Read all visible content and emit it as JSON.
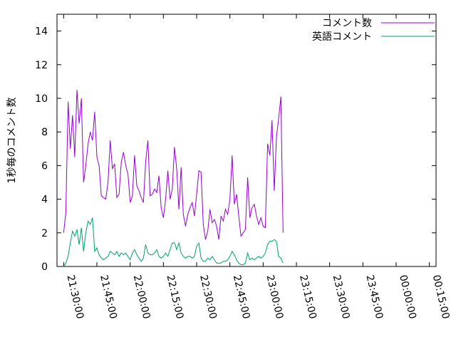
{
  "chart_data": {
    "type": "line",
    "title": "",
    "xlabel": "",
    "ylabel": "1秒毎のコメント数",
    "ylim": [
      0,
      15
    ],
    "yticks": [
      0,
      2,
      4,
      6,
      8,
      10,
      12,
      14
    ],
    "xticks": [
      {
        "value": 0,
        "label": "21:30:00"
      },
      {
        "value": 15,
        "label": "21:45:00"
      },
      {
        "value": 30,
        "label": "22:00:00"
      },
      {
        "value": 45,
        "label": "22:15:00"
      },
      {
        "value": 60,
        "label": "22:30:00"
      },
      {
        "value": 75,
        "label": "22:45:00"
      },
      {
        "value": 90,
        "label": "23:00:00"
      },
      {
        "value": 105,
        "label": "23:15:00"
      },
      {
        "value": 120,
        "label": "23:30:00"
      },
      {
        "value": 135,
        "label": "23:45:00"
      },
      {
        "value": 150,
        "label": "00:00:00"
      },
      {
        "value": 165,
        "label": "00:15:00"
      }
    ],
    "xlim": [
      -3,
      168
    ],
    "grid": false,
    "legend_position": "top-right",
    "series": [
      {
        "name": "コメント数",
        "color": "#9400d3",
        "points": [
          [
            0,
            2.0
          ],
          [
            1,
            3.2
          ],
          [
            2,
            9.8
          ],
          [
            3,
            7.0
          ],
          [
            4,
            9.0
          ],
          [
            5,
            6.5
          ],
          [
            6,
            10.5
          ],
          [
            7,
            8.5
          ],
          [
            8,
            10.0
          ],
          [
            9,
            5.0
          ],
          [
            10,
            6.0
          ],
          [
            11,
            7.3
          ],
          [
            12,
            8.0
          ],
          [
            13,
            7.5
          ],
          [
            14,
            9.2
          ],
          [
            15,
            6.5
          ],
          [
            16,
            6.0
          ],
          [
            17,
            4.2
          ],
          [
            18,
            4.1
          ],
          [
            19,
            4.0
          ],
          [
            20,
            5.0
          ],
          [
            21,
            7.5
          ],
          [
            22,
            5.8
          ],
          [
            23,
            6.1
          ],
          [
            24,
            4.1
          ],
          [
            25,
            4.3
          ],
          [
            26,
            6.2
          ],
          [
            27,
            6.8
          ],
          [
            28,
            6.0
          ],
          [
            29,
            5.5
          ],
          [
            30,
            3.8
          ],
          [
            31,
            4.2
          ],
          [
            32,
            6.6
          ],
          [
            33,
            4.8
          ],
          [
            34,
            4.5
          ],
          [
            35,
            4.1
          ],
          [
            36,
            3.8
          ],
          [
            37,
            6.2
          ],
          [
            38,
            7.5
          ],
          [
            39,
            4.2
          ],
          [
            40,
            4.3
          ],
          [
            41,
            4.6
          ],
          [
            42,
            4.4
          ],
          [
            43,
            5.4
          ],
          [
            44,
            3.5
          ],
          [
            45,
            2.9
          ],
          [
            46,
            4.0
          ],
          [
            47,
            5.7
          ],
          [
            48,
            4.0
          ],
          [
            49,
            4.6
          ],
          [
            50,
            7.1
          ],
          [
            51,
            5.8
          ],
          [
            52,
            3.4
          ],
          [
            53,
            5.9
          ],
          [
            54,
            3.1
          ],
          [
            55,
            2.4
          ],
          [
            56,
            3.1
          ],
          [
            57,
            3.5
          ],
          [
            58,
            3.8
          ],
          [
            59,
            3.0
          ],
          [
            60,
            4.3
          ],
          [
            61,
            5.7
          ],
          [
            62,
            5.6
          ],
          [
            63,
            2.5
          ],
          [
            64,
            1.6
          ],
          [
            65,
            2.1
          ],
          [
            66,
            3.4
          ],
          [
            67,
            2.6
          ],
          [
            68,
            2.8
          ],
          [
            69,
            2.4
          ],
          [
            70,
            1.6
          ],
          [
            71,
            3.0
          ],
          [
            72,
            2.7
          ],
          [
            73,
            3.4
          ],
          [
            74,
            3.1
          ],
          [
            75,
            4.0
          ],
          [
            76,
            6.6
          ],
          [
            77,
            3.7
          ],
          [
            78,
            4.3
          ],
          [
            79,
            3.0
          ],
          [
            80,
            1.8
          ],
          [
            81,
            2.0
          ],
          [
            82,
            2.2
          ],
          [
            83,
            5.3
          ],
          [
            84,
            2.9
          ],
          [
            85,
            3.5
          ],
          [
            86,
            3.7
          ],
          [
            87,
            3.0
          ],
          [
            88,
            2.5
          ],
          [
            89,
            2.9
          ],
          [
            90,
            2.4
          ],
          [
            91,
            2.3
          ],
          [
            92,
            7.3
          ],
          [
            93,
            6.6
          ],
          [
            94,
            8.7
          ],
          [
            95,
            4.5
          ],
          [
            96,
            7.7
          ],
          [
            97,
            8.8
          ],
          [
            98,
            10.1
          ],
          [
            99,
            2.0
          ]
        ]
      },
      {
        "name": "英語コメント",
        "color": "#009e73",
        "points": [
          [
            0,
            0.0
          ],
          [
            1,
            0.2
          ],
          [
            2,
            0.6
          ],
          [
            3,
            1.4
          ],
          [
            4,
            2.1
          ],
          [
            5,
            1.8
          ],
          [
            6,
            2.2
          ],
          [
            7,
            1.3
          ],
          [
            8,
            2.3
          ],
          [
            9,
            0.9
          ],
          [
            10,
            2.0
          ],
          [
            11,
            2.7
          ],
          [
            12,
            2.5
          ],
          [
            13,
            2.9
          ],
          [
            14,
            0.9
          ],
          [
            15,
            1.1
          ],
          [
            16,
            0.7
          ],
          [
            17,
            0.5
          ],
          [
            18,
            0.4
          ],
          [
            19,
            0.5
          ],
          [
            20,
            0.6
          ],
          [
            21,
            0.9
          ],
          [
            22,
            0.8
          ],
          [
            23,
            0.7
          ],
          [
            24,
            0.9
          ],
          [
            25,
            0.6
          ],
          [
            26,
            0.8
          ],
          [
            27,
            0.7
          ],
          [
            28,
            0.8
          ],
          [
            29,
            0.6
          ],
          [
            30,
            0.4
          ],
          [
            31,
            0.8
          ],
          [
            32,
            1.0
          ],
          [
            33,
            0.7
          ],
          [
            34,
            0.5
          ],
          [
            35,
            0.3
          ],
          [
            36,
            0.5
          ],
          [
            37,
            1.3
          ],
          [
            38,
            0.8
          ],
          [
            39,
            0.7
          ],
          [
            40,
            0.7
          ],
          [
            41,
            0.8
          ],
          [
            42,
            1.0
          ],
          [
            43,
            0.6
          ],
          [
            44,
            0.5
          ],
          [
            45,
            0.6
          ],
          [
            46,
            0.8
          ],
          [
            47,
            0.6
          ],
          [
            48,
            1.0
          ],
          [
            49,
            1.4
          ],
          [
            50,
            1.4
          ],
          [
            51,
            1.0
          ],
          [
            52,
            1.4
          ],
          [
            53,
            0.8
          ],
          [
            54,
            0.6
          ],
          [
            55,
            0.5
          ],
          [
            56,
            0.6
          ],
          [
            57,
            0.6
          ],
          [
            58,
            0.5
          ],
          [
            59,
            0.6
          ],
          [
            60,
            1.2
          ],
          [
            61,
            1.4
          ],
          [
            62,
            0.5
          ],
          [
            63,
            0.3
          ],
          [
            64,
            0.3
          ],
          [
            65,
            0.5
          ],
          [
            66,
            0.4
          ],
          [
            67,
            0.6
          ],
          [
            68,
            0.4
          ],
          [
            69,
            0.2
          ],
          [
            70,
            0.2
          ],
          [
            71,
            0.2
          ],
          [
            72,
            0.3
          ],
          [
            73,
            0.3
          ],
          [
            74,
            0.4
          ],
          [
            75,
            0.6
          ],
          [
            76,
            0.9
          ],
          [
            77,
            0.7
          ],
          [
            78,
            0.4
          ],
          [
            79,
            0.2
          ],
          [
            80,
            0.1
          ],
          [
            81,
            0.1
          ],
          [
            82,
            0.2
          ],
          [
            83,
            0.8
          ],
          [
            84,
            0.4
          ],
          [
            85,
            0.5
          ],
          [
            86,
            0.4
          ],
          [
            87,
            0.5
          ],
          [
            88,
            0.6
          ],
          [
            89,
            0.5
          ],
          [
            90,
            0.6
          ],
          [
            91,
            0.8
          ],
          [
            92,
            1.3
          ],
          [
            93,
            1.5
          ],
          [
            94,
            1.5
          ],
          [
            95,
            1.6
          ],
          [
            96,
            1.5
          ],
          [
            97,
            0.6
          ],
          [
            98,
            0.5
          ],
          [
            99,
            0.2
          ]
        ]
      }
    ]
  }
}
